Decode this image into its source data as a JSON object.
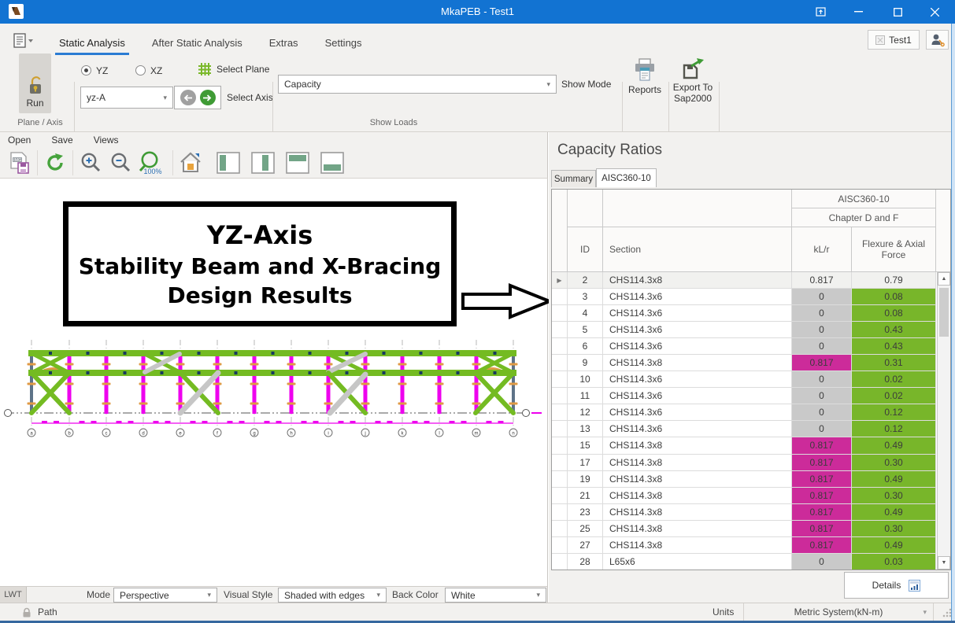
{
  "titlebar": {
    "title": "MkaPEB - Test1"
  },
  "ribbon": {
    "tabs": [
      "Static Analysis",
      "After Static Analysis",
      "Extras",
      "Settings"
    ],
    "active_tab": "Static Analysis",
    "run_label": "Run",
    "plane_yz": "YZ",
    "plane_xz": "XZ",
    "select_plane_label": "Select Plane",
    "axis_value": "yz-A",
    "select_axis_label": "Select Axis",
    "show_mode_value": "Capacity",
    "show_mode_label": "Show Mode",
    "reports_label": "Reports",
    "export_label": "Export To Sap2000",
    "group_plane_axis": "Plane / Axis",
    "group_show_loads": "Show Loads",
    "project_tab": "Test1"
  },
  "toolbar": {
    "open": "Open",
    "save": "Save",
    "views": "Views",
    "zoom_reset": "100%"
  },
  "viewport": {
    "annotation": [
      "YZ-Axis",
      "Stability Beam and X-Bracing",
      "Design Results"
    ],
    "axis_labels": [
      "a",
      "b",
      "c",
      "d",
      "e",
      "f",
      "g",
      "h",
      "i",
      "j",
      "k",
      "l",
      "m",
      "n"
    ]
  },
  "panel": {
    "title": "Capacity Ratios",
    "tabs": [
      "Summary",
      "AISC360-10"
    ],
    "band_top": "AISC360-10",
    "band_sub": "Chapter D and F",
    "col_id": "ID",
    "col_section": "Section",
    "col_klr": "kL/r",
    "col_force": "Flexure & Axial Force",
    "rows": [
      {
        "id": "2",
        "section": "CHS114.3x8",
        "klr": "0.817",
        "force": "0.79",
        "klr_style": "plain",
        "force_style": "plain",
        "selected": true
      },
      {
        "id": "3",
        "section": "CHS114.3x6",
        "klr": "0",
        "force": "0.08",
        "klr_style": "gray",
        "force_style": "green"
      },
      {
        "id": "4",
        "section": "CHS114.3x6",
        "klr": "0",
        "force": "0.08",
        "klr_style": "gray",
        "force_style": "green"
      },
      {
        "id": "5",
        "section": "CHS114.3x6",
        "klr": "0",
        "force": "0.43",
        "klr_style": "gray",
        "force_style": "green"
      },
      {
        "id": "6",
        "section": "CHS114.3x6",
        "klr": "0",
        "force": "0.43",
        "klr_style": "gray",
        "force_style": "green"
      },
      {
        "id": "9",
        "section": "CHS114.3x8",
        "klr": "0.817",
        "force": "0.31",
        "klr_style": "magenta",
        "force_style": "green"
      },
      {
        "id": "10",
        "section": "CHS114.3x6",
        "klr": "0",
        "force": "0.02",
        "klr_style": "gray",
        "force_style": "green"
      },
      {
        "id": "11",
        "section": "CHS114.3x6",
        "klr": "0",
        "force": "0.02",
        "klr_style": "gray",
        "force_style": "green"
      },
      {
        "id": "12",
        "section": "CHS114.3x6",
        "klr": "0",
        "force": "0.12",
        "klr_style": "gray",
        "force_style": "green"
      },
      {
        "id": "13",
        "section": "CHS114.3x6",
        "klr": "0",
        "force": "0.12",
        "klr_style": "gray",
        "force_style": "green"
      },
      {
        "id": "15",
        "section": "CHS114.3x8",
        "klr": "0.817",
        "force": "0.49",
        "klr_style": "magenta",
        "force_style": "green"
      },
      {
        "id": "17",
        "section": "CHS114.3x8",
        "klr": "0.817",
        "force": "0.30",
        "klr_style": "magenta",
        "force_style": "green"
      },
      {
        "id": "19",
        "section": "CHS114.3x8",
        "klr": "0.817",
        "force": "0.49",
        "klr_style": "magenta",
        "force_style": "green"
      },
      {
        "id": "21",
        "section": "CHS114.3x8",
        "klr": "0.817",
        "force": "0.30",
        "klr_style": "magenta",
        "force_style": "green"
      },
      {
        "id": "23",
        "section": "CHS114.3x8",
        "klr": "0.817",
        "force": "0.49",
        "klr_style": "magenta",
        "force_style": "green"
      },
      {
        "id": "25",
        "section": "CHS114.3x8",
        "klr": "0.817",
        "force": "0.30",
        "klr_style": "magenta",
        "force_style": "green"
      },
      {
        "id": "27",
        "section": "CHS114.3x8",
        "klr": "0.817",
        "force": "0.49",
        "klr_style": "magenta",
        "force_style": "green"
      },
      {
        "id": "28",
        "section": "L65x6",
        "klr": "0",
        "force": "0.03",
        "klr_style": "gray",
        "force_style": "green"
      }
    ],
    "details_label": "Details"
  },
  "bottombar": {
    "lwt": "LWT",
    "mode_label": "Mode",
    "mode_value": "Perspective",
    "visual_style_label": "Visual Style",
    "visual_style_value": "Shaded with edges",
    "back_color_label": "Back Color",
    "back_color_value": "White"
  },
  "statusbar": {
    "path": "Path",
    "units_label": "Units",
    "units_value": "Metric System(kN-m)"
  },
  "colors": {
    "titlebar": "#1273d2",
    "accent": "#2b7cd3",
    "cell_green": "#78b62a",
    "cell_magenta": "#cc2b9a",
    "cell_gray": "#c9c9c9",
    "model_green": "#74bb22",
    "model_magenta": "#ee00ee",
    "model_orange": "#e09a45",
    "model_gray": "#c6c6c6"
  }
}
